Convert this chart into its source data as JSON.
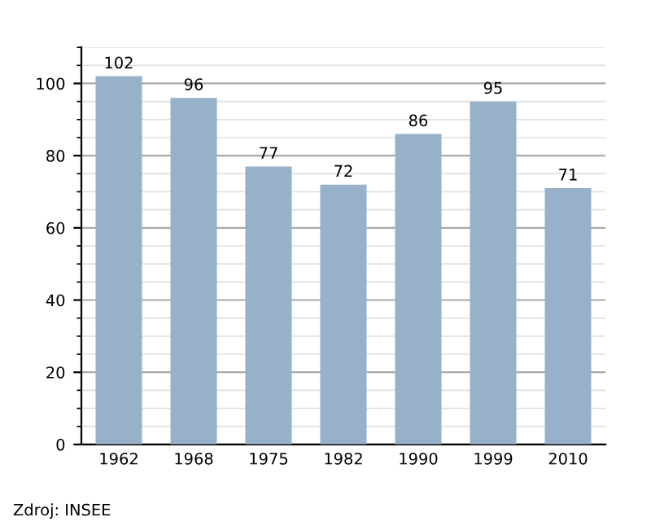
{
  "chart_data": {
    "type": "bar",
    "categories": [
      "1962",
      "1968",
      "1975",
      "1982",
      "1990",
      "1999",
      "2010"
    ],
    "values": [
      102,
      96,
      77,
      72,
      86,
      95,
      71
    ],
    "color": "#98b1cb",
    "data_labels": true,
    "ylim": [
      0,
      110
    ],
    "yticks": [
      0,
      {
        "value": 5,
        "label": null
      },
      {
        "value": 10,
        "label": null
      },
      {
        "value": 15,
        "label": null
      },
      20,
      {
        "value": 25,
        "label": null
      },
      {
        "value": 30,
        "label": null
      },
      {
        "value": 35,
        "label": null
      },
      40,
      {
        "value": 45,
        "label": null
      },
      {
        "value": 50,
        "label": null
      },
      {
        "value": 55,
        "label": null
      },
      60,
      {
        "value": 65,
        "label": null
      },
      {
        "value": 70,
        "label": null
      },
      {
        "value": 75,
        "label": null
      },
      80,
      {
        "value": 85,
        "label": null
      },
      {
        "value": 90,
        "label": null
      },
      {
        "value": 95,
        "label": null
      },
      100,
      {
        "value": 105,
        "label": null
      },
      {
        "value": 110,
        "label": null
      }
    ],
    "grid": true,
    "annotations": [
      "Zdroj: INSEE"
    ]
  }
}
